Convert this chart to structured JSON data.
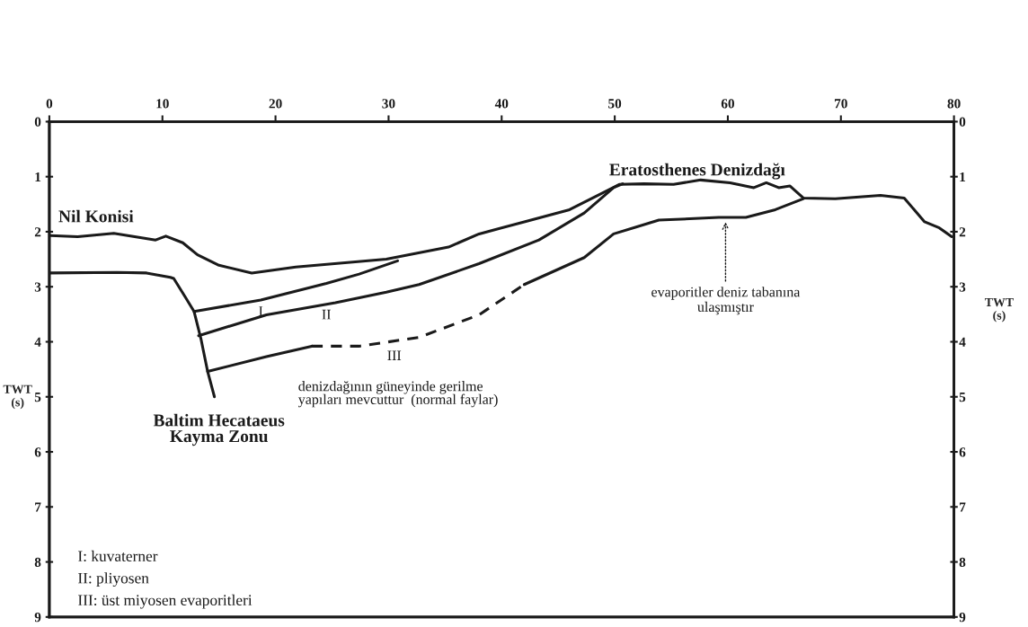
{
  "chart_data": {
    "type": "line",
    "xlim": [
      0,
      80
    ],
    "xticks": [
      0,
      10,
      20,
      30,
      40,
      50,
      60,
      70,
      80
    ],
    "ylim": [
      9,
      0
    ],
    "yticks": [
      0,
      1,
      2,
      3,
      4,
      5,
      6,
      7,
      8,
      9
    ],
    "y2lim": [
      9,
      0
    ],
    "y2ticks": [
      0,
      1,
      2,
      3,
      4,
      5,
      6,
      7,
      8,
      9
    ],
    "ylabel": "TWT\n(s)",
    "y2label": "TWT\n(s)",
    "grid": false,
    "legend": false,
    "marker": "none",
    "series": [
      {
        "color": "#1a1a1a",
        "line_style": "solid",
        "x": [
          0.1,
          2.5,
          5.7,
          9.4,
          10.3,
          11.8,
          13.1,
          15.0,
          17.9,
          21.8,
          29.8,
          35.3,
          38.0,
          42.0,
          46.0,
          48.6,
          50.4,
          52.6,
          55.2,
          57.6,
          60.2,
          62.3,
          63.4,
          64.5,
          65.5,
          66.7,
          69.5,
          73.5,
          75.6,
          77.4,
          78.7,
          79.8
        ],
        "values": [
          2.07,
          2.09,
          2.03,
          2.15,
          2.08,
          2.2,
          2.42,
          2.61,
          2.75,
          2.64,
          2.5,
          2.28,
          2.04,
          1.82,
          1.6,
          1.33,
          1.14,
          1.13,
          1.14,
          1.06,
          1.11,
          1.2,
          1.11,
          1.2,
          1.17,
          1.39,
          1.4,
          1.34,
          1.39,
          1.82,
          1.93,
          2.09
        ]
      },
      {
        "color": "#1a1a1a",
        "line_style": "solid",
        "x": [
          0.1,
          6.0,
          8.6,
          10.7,
          11.0,
          12.0,
          12.8,
          13.4,
          14.0,
          14.6
        ],
        "values": [
          2.75,
          2.74,
          2.75,
          2.83,
          2.85,
          3.18,
          3.45,
          3.94,
          4.54,
          5.0
        ]
      },
      {
        "color": "#1a1a1a",
        "line_style": "solid",
        "x": [
          12.8,
          18.7,
          24.5,
          27.4,
          30.8
        ],
        "values": [
          3.45,
          3.24,
          2.94,
          2.77,
          2.53
        ]
      },
      {
        "color": "#1a1a1a",
        "line_style": "solid",
        "x": [
          13.2,
          19.2,
          25.3,
          29.8,
          32.7,
          38.0,
          43.3,
          47.3,
          49.9,
          50.7
        ],
        "values": [
          3.89,
          3.51,
          3.29,
          3.1,
          2.96,
          2.58,
          2.15,
          1.66,
          1.2,
          1.13
        ]
      },
      {
        "color": "#1a1a1a",
        "line_style": "solid",
        "x": [
          14.0,
          19.2,
          23.2
        ],
        "values": [
          4.54,
          4.27,
          4.08
        ]
      },
      {
        "color": "#1a1a1a",
        "line_style": "dashed",
        "x": [
          23.2,
          27.4,
          32.7,
          38.0,
          42.0
        ],
        "values": [
          4.08,
          4.08,
          3.92,
          3.51,
          2.96
        ]
      },
      {
        "color": "#1a1a1a",
        "line_style": "solid",
        "x": [
          42.0,
          47.3,
          49.9,
          53.9,
          59.2,
          61.6,
          64.2,
          66.7
        ],
        "values": [
          2.96,
          2.47,
          2.04,
          1.79,
          1.74,
          1.74,
          1.6,
          1.4
        ]
      }
    ],
    "annotations": [
      "Nil Konisi",
      "Eratosthenes Denizdağı",
      "Baltim Hecataeus\nKayma Zonu",
      "denizdağının güneyinde gerilme\nyapıları mevcuttur  (normal faylar)",
      "I: kuvaterner",
      "II: pliyosen",
      "III: üst miyosen evaporitleri",
      {
        "text": "I",
        "x": 18.7,
        "y": 3.24
      },
      {
        "text": "II",
        "x": 24.5,
        "y": 3.3
      },
      {
        "text": "III",
        "x": 30.5,
        "y": 4.0
      },
      {
        "text": "evaporitler deniz tabanına\nulaşmıştır",
        "x": 59.8,
        "y": 1.78
      }
    ]
  }
}
